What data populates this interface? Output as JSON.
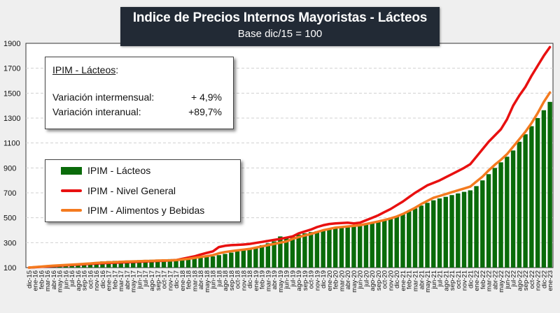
{
  "chart_data": {
    "type": "bar+line",
    "title": "Indice de Precios Internos Mayoristas - Lácteos",
    "subtitle": "Base dic/15 = 100",
    "ylim": [
      100,
      1900
    ],
    "yticks": [
      100,
      300,
      500,
      700,
      900,
      1100,
      1300,
      1500,
      1700,
      1900
    ],
    "grid": true,
    "legend_placement": "left-middle",
    "categories": [
      "dic-15",
      "ene-16",
      "feb-16",
      "mar-16",
      "abr-16",
      "may-16",
      "jun-16",
      "jul-16",
      "ago-16",
      "sep-16",
      "oct-16",
      "nov-16",
      "dic-16",
      "ene-17",
      "feb-17",
      "mar-17",
      "abr-17",
      "may-17",
      "jun-17",
      "jul-17",
      "ago-17",
      "sep-17",
      "oct-17",
      "nov-17",
      "dic-17",
      "ene-18",
      "feb-18",
      "mar-18",
      "abr-18",
      "may-18",
      "jun-18",
      "jul-18",
      "ago-18",
      "sep-18",
      "oct-18",
      "nov-18",
      "dic-18",
      "ene-19",
      "feb-19",
      "mar-19",
      "abr-19",
      "may-19",
      "jun-19",
      "jul-19",
      "ago-19",
      "sep-19",
      "oct-19",
      "nov-19",
      "dic-19",
      "ene-20",
      "feb-20",
      "mar-20",
      "abr-20",
      "may-20",
      "jun-20",
      "jul-20",
      "ago-20",
      "sep-20",
      "oct-20",
      "nov-20",
      "dic-20",
      "ene-21",
      "feb-21",
      "mar-21",
      "abr-21",
      "may-21",
      "jun-21",
      "jul-21",
      "ago-21",
      "sep-21",
      "oct-21",
      "nov-21",
      "dic-21",
      "ene-22",
      "feb-22",
      "mar-22",
      "abr-22",
      "may-22",
      "jun-22",
      "jul-22",
      "ago-22",
      "sep-22",
      "oct-22",
      "nov-22",
      "dic-22",
      "ene-23"
    ],
    "series": [
      {
        "name": "IPIM - Lácteos",
        "kind": "bar",
        "color": "#0a6b0a",
        "values": [
          100,
          104,
          108,
          112,
          116,
          120,
          124,
          128,
          132,
          136,
          140,
          145,
          150,
          152,
          154,
          155,
          157,
          158,
          160,
          162,
          163,
          165,
          166,
          168,
          170,
          173,
          176,
          180,
          183,
          187,
          190,
          200,
          210,
          220,
          230,
          240,
          250,
          265,
          280,
          295,
          310,
          350,
          345,
          355,
          365,
          375,
          385,
          392,
          400,
          408,
          415,
          420,
          425,
          432,
          440,
          450,
          462,
          475,
          487,
          498,
          510,
          530,
          552,
          575,
          598,
          620,
          640,
          655,
          668,
          682,
          695,
          708,
          720,
          754,
          800,
          850,
          900,
          945,
          990,
          1040,
          1110,
          1170,
          1235,
          1300,
          1363,
          1430
        ]
      },
      {
        "name": "IPIM - Nivel General",
        "kind": "line",
        "color": "#e81010",
        "values": [
          100,
          103,
          106,
          109,
          112,
          115,
          118,
          121,
          124,
          127,
          130,
          132,
          135,
          137,
          139,
          141,
          143,
          145,
          147,
          149,
          151,
          153,
          155,
          157,
          160,
          170,
          180,
          190,
          205,
          218,
          230,
          265,
          275,
          280,
          282,
          285,
          290,
          298,
          306,
          314,
          322,
          330,
          340,
          350,
          375,
          390,
          405,
          425,
          440,
          450,
          455,
          458,
          460,
          455,
          460,
          480,
          500,
          520,
          545,
          570,
          600,
          630,
          665,
          700,
          730,
          760,
          780,
          800,
          825,
          850,
          875,
          900,
          930,
          990,
          1050,
          1110,
          1160,
          1210,
          1290,
          1400,
          1480,
          1550,
          1640,
          1720,
          1800,
          1870
        ]
      },
      {
        "name": "IPIM - Alimentos y Bebidas",
        "kind": "line",
        "color": "#f47a1f",
        "values": [
          100,
          104,
          108,
          112,
          115,
          118,
          121,
          124,
          127,
          130,
          133,
          137,
          140,
          142,
          144,
          146,
          148,
          150,
          151,
          153,
          154,
          156,
          157,
          158,
          160,
          165,
          170,
          178,
          185,
          192,
          200,
          215,
          225,
          232,
          238,
          244,
          250,
          260,
          270,
          280,
          290,
          300,
          310,
          330,
          345,
          358,
          370,
          385,
          400,
          410,
          420,
          425,
          430,
          435,
          440,
          450,
          460,
          470,
          482,
          495,
          510,
          530,
          555,
          580,
          610,
          635,
          660,
          675,
          690,
          705,
          720,
          735,
          750,
          790,
          830,
          880,
          925,
          965,
          1010,
          1070,
          1130,
          1190,
          1260,
          1340,
          1430,
          1505
        ]
      }
    ]
  },
  "info_box": {
    "heading": "IPIM - Lácteos",
    "colon": ":",
    "rows": [
      {
        "label": "Variación intermensual:",
        "value": "+ 4,9%"
      },
      {
        "label": "Variación interanual:",
        "value": "+89,7%"
      }
    ]
  }
}
